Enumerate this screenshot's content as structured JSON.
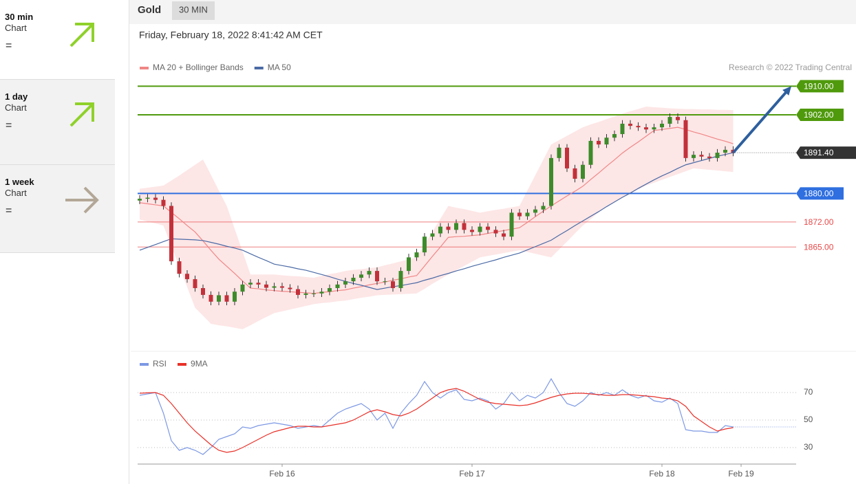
{
  "sidebar": [
    {
      "period": "30 min",
      "label": "Chart",
      "signal": "="
    },
    {
      "period": "1 day",
      "label": "Chart",
      "signal": "="
    },
    {
      "period": "1 week",
      "label": "Chart",
      "signal": "="
    }
  ],
  "header": {
    "instrument": "Gold",
    "timeframe": "30 MIN",
    "datetime": "Friday, February 18, 2022 8:41:42 AM CET"
  },
  "chart_data": [
    {
      "type": "candlestick",
      "credit": "Research © 2022 Trading Central",
      "ylim": [
        1836,
        1912
      ],
      "up_color": "#3d8b2a",
      "down_color": "#c2313a",
      "categories": [
        null,
        null,
        null,
        null,
        null,
        null,
        null,
        null,
        null,
        null,
        null,
        null,
        null,
        null,
        null,
        null,
        null,
        null,
        "Feb 16",
        null,
        null,
        null,
        null,
        null,
        null,
        null,
        null,
        null,
        null,
        null,
        null,
        null,
        null,
        null,
        null,
        null,
        null,
        null,
        null,
        null,
        null,
        null,
        "Feb 17",
        null,
        null,
        null,
        null,
        null,
        null,
        null,
        null,
        null,
        null,
        null,
        null,
        null,
        null,
        null,
        null,
        null,
        null,
        null,
        null,
        null,
        null,
        null,
        "Feb 18",
        null,
        null,
        null,
        null,
        null,
        null,
        null,
        null,
        null,
        "Feb 19"
      ],
      "open": [
        1878.0,
        1878.5,
        1878.8,
        1878.2,
        1876.5,
        1861.0,
        1857.5,
        1856.0,
        1853.5,
        1851.6,
        1849.7,
        1851.5,
        1849.7,
        1852.5,
        1854.5,
        1855.0,
        1854.5,
        1853.6,
        1854.0,
        1853.6,
        1853.2,
        1851.6,
        1852.0,
        1852.0,
        1852.5,
        1853.5,
        1854.5,
        1855.4,
        1856.4,
        1857.3,
        1858.3,
        1855.4,
        1855.4,
        1853.5,
        1858.3,
        1862.1,
        1863.5,
        1867.9,
        1868.8,
        1870.7,
        1869.8,
        1871.7,
        1869.8,
        1869.2,
        1870.7,
        1869.8,
        1868.8,
        1867.9,
        1874.6,
        1873.6,
        1874.6,
        1875.5,
        1876.5,
        1889.9,
        1892.8,
        1887.0,
        1884.1,
        1888.0,
        1894.7,
        1893.7,
        1895.6,
        1896.6,
        1899.5,
        1898.9,
        1898.5,
        1897.9,
        1898.5,
        1899.5,
        1901.4,
        1900.5,
        1889.9,
        1890.8,
        1890.3,
        1889.9,
        1891.4,
        1892.2,
        null
      ],
      "high": [
        1879.5,
        1879.8,
        1879.8,
        1879.2,
        1877.5,
        1862.0,
        1858.5,
        1857.0,
        1854.5,
        1852.6,
        1852.5,
        1852.5,
        1853.5,
        1855.5,
        1856.0,
        1856.0,
        1855.5,
        1855.0,
        1855.0,
        1854.6,
        1854.2,
        1853.0,
        1853.0,
        1853.5,
        1854.5,
        1855.5,
        1856.4,
        1857.4,
        1858.3,
        1859.3,
        1859.3,
        1856.4,
        1856.4,
        1859.3,
        1863.1,
        1864.5,
        1868.9,
        1869.8,
        1871.7,
        1871.7,
        1872.7,
        1872.7,
        1870.8,
        1871.7,
        1871.7,
        1870.8,
        1869.8,
        1875.6,
        1875.6,
        1875.6,
        1876.5,
        1877.5,
        1890.9,
        1893.8,
        1893.8,
        1888.0,
        1889.0,
        1895.7,
        1895.7,
        1896.6,
        1897.6,
        1900.5,
        1900.5,
        1899.9,
        1899.5,
        1899.5,
        1900.5,
        1902.4,
        1902.4,
        1901.5,
        1891.8,
        1891.8,
        1891.3,
        1892.4,
        1893.2,
        1893.2,
        null
      ],
      "low": [
        1877.0,
        1877.5,
        1877.2,
        1875.5,
        1860.0,
        1856.5,
        1855.0,
        1852.5,
        1850.6,
        1848.7,
        1848.7,
        1848.7,
        1848.7,
        1851.5,
        1853.5,
        1853.5,
        1852.6,
        1852.6,
        1852.6,
        1852.2,
        1850.6,
        1850.6,
        1851.0,
        1851.0,
        1851.5,
        1852.5,
        1853.5,
        1854.4,
        1855.4,
        1856.3,
        1854.4,
        1854.4,
        1852.5,
        1852.5,
        1857.3,
        1861.1,
        1862.5,
        1866.9,
        1867.8,
        1868.8,
        1868.8,
        1868.8,
        1868.2,
        1868.2,
        1868.8,
        1867.8,
        1866.9,
        1866.9,
        1872.6,
        1872.6,
        1873.6,
        1874.5,
        1875.5,
        1888.9,
        1886.0,
        1883.1,
        1883.1,
        1887.0,
        1892.7,
        1892.7,
        1894.6,
        1895.6,
        1897.9,
        1897.5,
        1896.9,
        1896.9,
        1897.5,
        1898.5,
        1899.5,
        1888.9,
        1888.9,
        1889.3,
        1888.9,
        1888.9,
        1890.4,
        1890.4,
        null
      ],
      "close": [
        1878.5,
        1878.8,
        1878.2,
        1876.5,
        1861.0,
        1857.5,
        1856.0,
        1853.5,
        1851.6,
        1849.7,
        1851.5,
        1849.7,
        1852.5,
        1854.5,
        1855.0,
        1854.5,
        1853.6,
        1854.0,
        1853.6,
        1853.2,
        1851.6,
        1852.0,
        1852.0,
        1852.5,
        1853.5,
        1854.5,
        1855.4,
        1856.4,
        1857.3,
        1858.3,
        1855.4,
        1855.4,
        1853.5,
        1858.3,
        1862.1,
        1863.5,
        1867.9,
        1868.8,
        1870.7,
        1869.8,
        1871.7,
        1869.8,
        1869.2,
        1870.7,
        1869.8,
        1868.8,
        1867.9,
        1874.6,
        1873.6,
        1874.6,
        1875.5,
        1876.5,
        1889.9,
        1892.8,
        1887.0,
        1884.1,
        1888.0,
        1894.7,
        1893.7,
        1895.6,
        1896.6,
        1899.5,
        1898.9,
        1898.5,
        1897.9,
        1898.5,
        1899.5,
        1901.4,
        1900.5,
        1889.9,
        1890.8,
        1890.3,
        1889.9,
        1891.4,
        1892.2,
        1891.4,
        null
      ],
      "series": [
        {
          "name": "MA 20 + Bollinger Bands",
          "color": "#f08686",
          "band_color": "#fde0e0",
          "values": [
            1877.4,
            1877.1,
            1876.8,
            1876.5,
            1874.7,
            1872.9,
            1871.0,
            1869.2,
            1866.7,
            1864.1,
            1861.6,
            1859.6,
            1857.6,
            1855.5,
            1853.5,
            1853.3,
            1853.0,
            1852.8,
            1852.6,
            1852.5,
            1852.3,
            1852.2,
            1852.0,
            1852.3,
            1852.5,
            1852.8,
            1853.0,
            1853.5,
            1853.9,
            1854.4,
            1854.8,
            1855.2,
            1855.7,
            1856.1,
            1856.6,
            1857.0,
            1859.7,
            1862.4,
            1865.0,
            1867.7,
            1867.9,
            1868.0,
            1868.2,
            1868.4,
            1868.8,
            1869.2,
            1869.6,
            1870.0,
            1870.4,
            1871.9,
            1873.5,
            1875.0,
            1876.5,
            1877.9,
            1879.3,
            1880.6,
            1882.0,
            1883.9,
            1885.7,
            1887.6,
            1889.4,
            1891.3,
            1892.9,
            1894.4,
            1896.0,
            1897.6,
            1897.9,
            1898.2,
            1898.5,
            1897.9,
            1897.2,
            1896.6,
            1895.9,
            1895.2,
            1894.6,
            1893.9,
            null
          ],
          "band_upper": [
            1881.3,
            1881.6,
            1881.9,
            1882.2,
            1883.6,
            1885.0,
            1886.5,
            1888.0,
            1889.5,
            1885.2,
            1880.8,
            1876.5,
            1870.1,
            1863.7,
            1857.3,
            1857.3,
            1857.3,
            1857.3,
            1857.1,
            1856.9,
            1856.8,
            1856.6,
            1856.4,
            1856.9,
            1857.4,
            1857.8,
            1858.3,
            1858.6,
            1858.8,
            1859.1,
            1859.3,
            1859.9,
            1860.4,
            1861.0,
            1861.5,
            1862.1,
            1865.7,
            1869.3,
            1872.9,
            1876.5,
            1876.0,
            1875.6,
            1875.1,
            1874.6,
            1875.0,
            1875.4,
            1875.7,
            1876.1,
            1876.5,
            1880.8,
            1885.1,
            1889.4,
            1893.7,
            1894.9,
            1896.1,
            1897.3,
            1898.5,
            1899.3,
            1900.0,
            1900.8,
            1901.5,
            1902.3,
            1903.0,
            1903.6,
            1904.3,
            1904.1,
            1904.0,
            1903.8,
            1903.7,
            1903.6,
            1903.6,
            1903.5,
            1903.5,
            1903.4,
            1903.4,
            1903.3,
            null
          ],
          "band_lower": [
            1872.7,
            1872.1,
            1871.6,
            1871.0,
            1865.3,
            1859.5,
            1853.8,
            1848.0,
            1845.8,
            1843.5,
            1843.1,
            1842.8,
            1842.4,
            1842.0,
            1843.1,
            1844.3,
            1845.4,
            1846.5,
            1847.0,
            1847.5,
            1848.0,
            1848.5,
            1849.0,
            1849.3,
            1849.5,
            1849.8,
            1850.0,
            1850.4,
            1850.8,
            1851.1,
            1851.5,
            1851.6,
            1851.7,
            1851.8,
            1851.9,
            1852.0,
            1853.3,
            1854.7,
            1856.0,
            1857.3,
            1858.5,
            1859.7,
            1860.9,
            1862.1,
            1862.5,
            1862.9,
            1863.3,
            1863.7,
            1864.1,
            1863.6,
            1863.1,
            1862.6,
            1862.1,
            1864.3,
            1866.5,
            1868.8,
            1871.0,
            1872.8,
            1874.7,
            1876.5,
            1877.6,
            1878.8,
            1879.9,
            1881.1,
            1882.2,
            1883.0,
            1883.8,
            1884.6,
            1885.4,
            1886.2,
            1887.0,
            1886.8,
            1886.6,
            1886.4,
            1886.2,
            1886.0,
            null
          ]
        },
        {
          "name": "MA 50",
          "color": "#4a6aa5",
          "values": [
            1864.1,
            1864.9,
            1865.7,
            1866.5,
            1867.3,
            1867.2,
            1867.1,
            1867.0,
            1866.8,
            1866.3,
            1865.8,
            1865.2,
            1864.7,
            1864.1,
            1863.1,
            1862.1,
            1861.2,
            1860.2,
            1859.8,
            1859.4,
            1858.9,
            1858.5,
            1857.9,
            1857.3,
            1856.7,
            1856.0,
            1855.4,
            1854.8,
            1854.3,
            1853.7,
            1853.1,
            1853.5,
            1853.9,
            1854.2,
            1854.6,
            1855.0,
            1855.7,
            1856.3,
            1857.0,
            1857.6,
            1858.3,
            1858.9,
            1859.6,
            1860.2,
            1860.8,
            1861.4,
            1862.1,
            1862.7,
            1863.3,
            1864.2,
            1865.1,
            1866.0,
            1866.9,
            1868.3,
            1869.6,
            1871.0,
            1872.3,
            1873.6,
            1874.9,
            1876.3,
            1877.6,
            1878.9,
            1880.1,
            1881.4,
            1882.6,
            1883.8,
            1884.9,
            1885.9,
            1887.0,
            1888.0,
            1888.6,
            1889.2,
            1889.8,
            1890.4,
            1890.9,
            1891.4,
            null
          ]
        }
      ],
      "levels": [
        {
          "value": 1910,
          "label": "1910.00",
          "color": "#4f9a0c",
          "filled": true
        },
        {
          "value": 1902,
          "label": "1902.00",
          "color": "#4f9a0c",
          "filled": true
        },
        {
          "value": 1880,
          "label": "1880.00",
          "color": "#2f6fe0",
          "filled": true
        },
        {
          "value": 1872,
          "label": "1872.00",
          "color": "#e84848",
          "filled": false
        },
        {
          "value": 1865,
          "label": "1865.00",
          "color": "#e84848",
          "filled": false
        }
      ],
      "last": {
        "value": 1891.4,
        "label": "1891.40",
        "color": "#333333"
      },
      "arrow": {
        "target": 1910,
        "color": "#2e5f9e"
      }
    },
    {
      "type": "line",
      "ylim": [
        20,
        83
      ],
      "yticks": [
        30,
        50,
        70
      ],
      "grid": true,
      "series": [
        {
          "name": "RSI",
          "color": "#7c98e4",
          "values": [
            68,
            69,
            70,
            55,
            35,
            28,
            30,
            28,
            25,
            30,
            36,
            38,
            40,
            45,
            44,
            46,
            47,
            48,
            47,
            46,
            44,
            45,
            46,
            45,
            50,
            55,
            58,
            60,
            62,
            58,
            50,
            55,
            44,
            55,
            62,
            68,
            78,
            70,
            66,
            70,
            72,
            65,
            64,
            66,
            64,
            58,
            62,
            70,
            64,
            68,
            66,
            70,
            80,
            70,
            62,
            60,
            64,
            70,
            68,
            70,
            68,
            72,
            68,
            66,
            68,
            64,
            63,
            66,
            62,
            43,
            42,
            42,
            41,
            41,
            46,
            45,
            null
          ]
        },
        {
          "name": "9MA",
          "color": "#e83028",
          "values": [
            69.5,
            69.8,
            70,
            68,
            62,
            55,
            48,
            42,
            37,
            32,
            28,
            26.5,
            27.5,
            30,
            33,
            36,
            39,
            41.5,
            43,
            44.5,
            45.5,
            45.5,
            45,
            45,
            46,
            47,
            48,
            50,
            53,
            56,
            57.5,
            56,
            54,
            53,
            55,
            58,
            62,
            66,
            70,
            72,
            73,
            71,
            68,
            65,
            63,
            62,
            61.5,
            61,
            60.5,
            61,
            62.5,
            64.5,
            66.5,
            68,
            69,
            69.5,
            69.5,
            69,
            68.5,
            68,
            68,
            68.5,
            68.5,
            68,
            67.5,
            67,
            66,
            65.5,
            64,
            60,
            53,
            49,
            45,
            42,
            43.5,
            44.5,
            null
          ]
        }
      ]
    }
  ]
}
